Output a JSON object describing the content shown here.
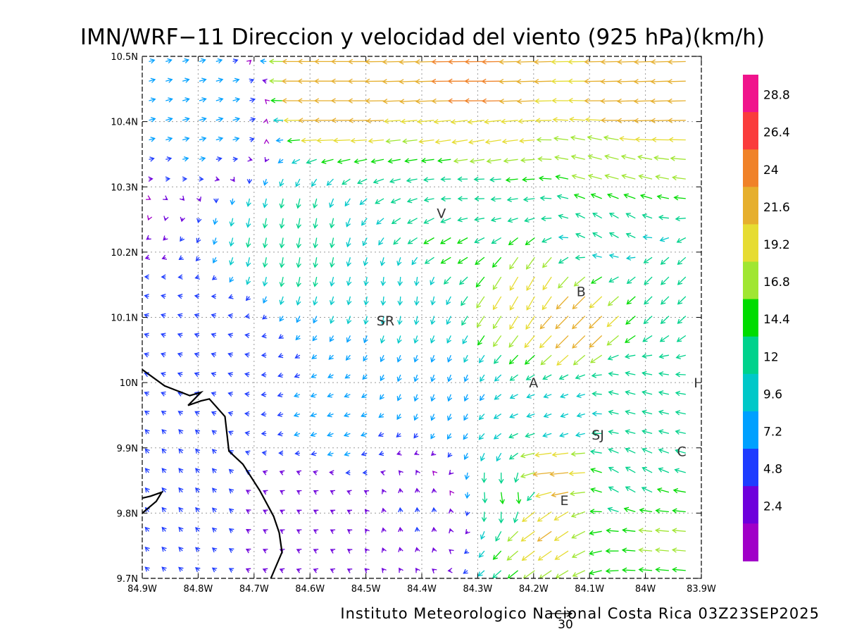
{
  "title": "IMN/WRF−11 Direccion y velocidad del viento (925 hPa)(km/h)",
  "footer": "Instituto Meteorologico Nacional Costa Rica  03Z23SEP2025",
  "reference_vector_label": "30",
  "map": {
    "lon_range": [
      -84.9,
      -83.9
    ],
    "lat_range": [
      9.7,
      10.5
    ],
    "x_ticks": [
      {
        "value": -84.9,
        "label": "84.9W"
      },
      {
        "value": -84.8,
        "label": "84.8W"
      },
      {
        "value": -84.7,
        "label": "84.7W"
      },
      {
        "value": -84.6,
        "label": "84.6W"
      },
      {
        "value": -84.5,
        "label": "84.5W"
      },
      {
        "value": -84.4,
        "label": "84.4W"
      },
      {
        "value": -84.3,
        "label": "84.3W"
      },
      {
        "value": -84.2,
        "label": "84.2W"
      },
      {
        "value": -84.1,
        "label": "84.1W"
      },
      {
        "value": -84.0,
        "label": "84W"
      },
      {
        "value": -83.9,
        "label": "83.9W"
      }
    ],
    "y_ticks": [
      {
        "value": 9.7,
        "label": "9.7N"
      },
      {
        "value": 9.8,
        "label": "9.8N"
      },
      {
        "value": 9.9,
        "label": "9.9N"
      },
      {
        "value": 10.0,
        "label": "10N"
      },
      {
        "value": 10.1,
        "label": "10.1N"
      },
      {
        "value": 10.2,
        "label": "10.2N"
      },
      {
        "value": 10.3,
        "label": "10.3N"
      },
      {
        "value": 10.4,
        "label": "10.4N"
      },
      {
        "value": 10.5,
        "label": "10.5N"
      }
    ],
    "grid": true,
    "places": [
      {
        "label": "V",
        "lon": -84.365,
        "lat": 10.26
      },
      {
        "label": "B",
        "lon": -84.115,
        "lat": 10.14
      },
      {
        "label": "SR",
        "lon": -84.465,
        "lat": 10.095
      },
      {
        "label": "A",
        "lon": -84.2,
        "lat": 10.0
      },
      {
        "label": "I",
        "lon": -83.91,
        "lat": 10.0
      },
      {
        "label": "SJ",
        "lon": -84.085,
        "lat": 9.92
      },
      {
        "label": "C",
        "lon": -83.935,
        "lat": 9.895
      },
      {
        "label": "E",
        "lon": -84.145,
        "lat": 9.82
      }
    ],
    "coastline": [
      [
        -84.9,
        10.02
      ],
      [
        -84.86,
        9.995
      ],
      [
        -84.815,
        9.98
      ],
      [
        -84.795,
        9.985
      ],
      [
        -84.818,
        9.965
      ],
      [
        -84.795,
        9.972
      ],
      [
        -84.78,
        9.975
      ],
      [
        -84.752,
        9.948
      ],
      [
        -84.745,
        9.895
      ],
      [
        -84.72,
        9.875
      ],
      [
        -84.69,
        9.835
      ],
      [
        -84.665,
        9.795
      ],
      [
        -84.655,
        9.77
      ],
      [
        -84.65,
        9.74
      ],
      [
        -84.67,
        9.7
      ]
    ],
    "coastline_2": [
      [
        -84.9,
        9.823
      ],
      [
        -84.885,
        9.826
      ],
      [
        -84.865,
        9.832
      ],
      [
        -84.875,
        9.818
      ],
      [
        -84.9,
        9.8
      ]
    ]
  },
  "colorbar": {
    "labels": [
      "28.8",
      "26.4",
      "24",
      "21.6",
      "19.2",
      "16.8",
      "14.4",
      "12",
      "9.6",
      "7.2",
      "4.8",
      "2.4"
    ],
    "colors": [
      "#f0148c",
      "#fa3c3c",
      "#f08228",
      "#e6af2d",
      "#e6dc32",
      "#a0e632",
      "#00dc00",
      "#00d28c",
      "#00c8c8",
      "#00a0ff",
      "#1e3cff",
      "#6e00dc",
      "#a000c8"
    ]
  },
  "chart_data": {
    "type": "vector_field",
    "title": "IMN/WRF−11 Direccion y velocidad del viento (925 hPa)(km/h)",
    "xlabel": "",
    "ylabel": "",
    "xlim": [
      -84.9,
      -83.9
    ],
    "ylim": [
      9.7,
      10.5
    ],
    "levels": [
      2.4,
      4.8,
      7.2,
      9.6,
      12,
      14.4,
      16.8,
      19.2,
      21.6,
      24,
      26.4,
      28.8
    ],
    "zones": [
      {
        "lon": -84.55,
        "lat": 10.45,
        "dir_deg": 180,
        "speed": 24
      },
      {
        "lon": -84.3,
        "lat": 10.44,
        "dir_deg": 180,
        "speed": 25
      },
      {
        "lon": -84.0,
        "lat": 10.42,
        "dir_deg": 182,
        "speed": 23
      },
      {
        "lon": -84.3,
        "lat": 10.38,
        "dir_deg": 190,
        "speed": 20
      },
      {
        "lon": -84.05,
        "lat": 10.33,
        "dir_deg": 165,
        "speed": 18
      },
      {
        "lon": -84.78,
        "lat": 10.42,
        "dir_deg": 15,
        "speed": 9
      },
      {
        "lon": -84.62,
        "lat": 10.22,
        "dir_deg": 260,
        "speed": 13
      },
      {
        "lon": -84.43,
        "lat": 10.15,
        "dir_deg": 265,
        "speed": 11
      },
      {
        "lon": -84.36,
        "lat": 10.22,
        "dir_deg": 210,
        "speed": 15
      },
      {
        "lon": -84.32,
        "lat": 10.29,
        "dir_deg": 180,
        "speed": 12
      },
      {
        "lon": -84.21,
        "lat": 10.14,
        "dir_deg": 240,
        "speed": 20
      },
      {
        "lon": -84.12,
        "lat": 10.1,
        "dir_deg": 225,
        "speed": 23
      },
      {
        "lon": -84.06,
        "lat": 10.24,
        "dir_deg": 150,
        "speed": 13
      },
      {
        "lon": -83.96,
        "lat": 10.15,
        "dir_deg": 225,
        "speed": 14
      },
      {
        "lon": -84.38,
        "lat": 10.0,
        "dir_deg": 250,
        "speed": 9
      },
      {
        "lon": -84.55,
        "lat": 9.93,
        "dir_deg": 200,
        "speed": 8
      },
      {
        "lon": -84.8,
        "lat": 10.05,
        "dir_deg": 160,
        "speed": 6
      },
      {
        "lon": -84.84,
        "lat": 9.85,
        "dir_deg": 130,
        "speed": 7
      },
      {
        "lon": -84.6,
        "lat": 9.82,
        "dir_deg": 150,
        "speed": 4
      },
      {
        "lon": -84.4,
        "lat": 9.8,
        "dir_deg": 95,
        "speed": 5
      },
      {
        "lon": -84.24,
        "lat": 9.83,
        "dir_deg": 280,
        "speed": 15
      },
      {
        "lon": -84.16,
        "lat": 9.86,
        "dir_deg": 185,
        "speed": 24
      },
      {
        "lon": -84.18,
        "lat": 9.79,
        "dir_deg": 215,
        "speed": 22
      },
      {
        "lon": -84.03,
        "lat": 9.85,
        "dir_deg": 150,
        "speed": 14
      },
      {
        "lon": -83.96,
        "lat": 9.77,
        "dir_deg": 175,
        "speed": 17
      },
      {
        "lon": -84.02,
        "lat": 9.97,
        "dir_deg": 165,
        "speed": 13
      },
      {
        "lon": -84.15,
        "lat": 9.95,
        "dir_deg": 200,
        "speed": 10
      }
    ]
  }
}
